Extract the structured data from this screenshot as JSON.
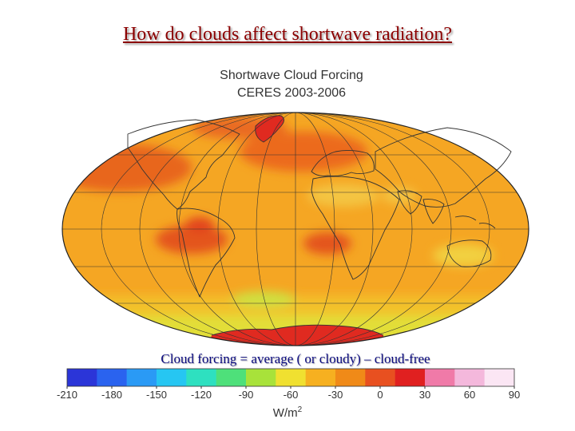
{
  "slide": {
    "title": "How do clouds affect shortwave radiation?",
    "caption": "Cloud forcing = average ( or cloudy) – cloud-free"
  },
  "figure": {
    "title_line1": "Shortwave Cloud Forcing",
    "title_line2": "CERES 2003-2006",
    "projection": "Hammer / Mollweide global ellipse",
    "ocean_color": "#f5a623",
    "land_outline_color": "#333333"
  },
  "colorbar": {
    "unit_base": "W/m",
    "unit_exp": "2",
    "tick_labels": [
      "-210",
      "-180",
      "-150",
      "-120",
      "-90",
      "-60",
      "-30",
      "0",
      "30",
      "60",
      "90"
    ],
    "colors": [
      "#2b35d8",
      "#2a63ef",
      "#2a9af5",
      "#26c6f2",
      "#2ee0c0",
      "#4ee07a",
      "#a8e23a",
      "#f0e030",
      "#f6b020",
      "#f08a18",
      "#e85020",
      "#e02020",
      "#f07aa8",
      "#f4b8dc",
      "#fbe6f4"
    ]
  }
}
